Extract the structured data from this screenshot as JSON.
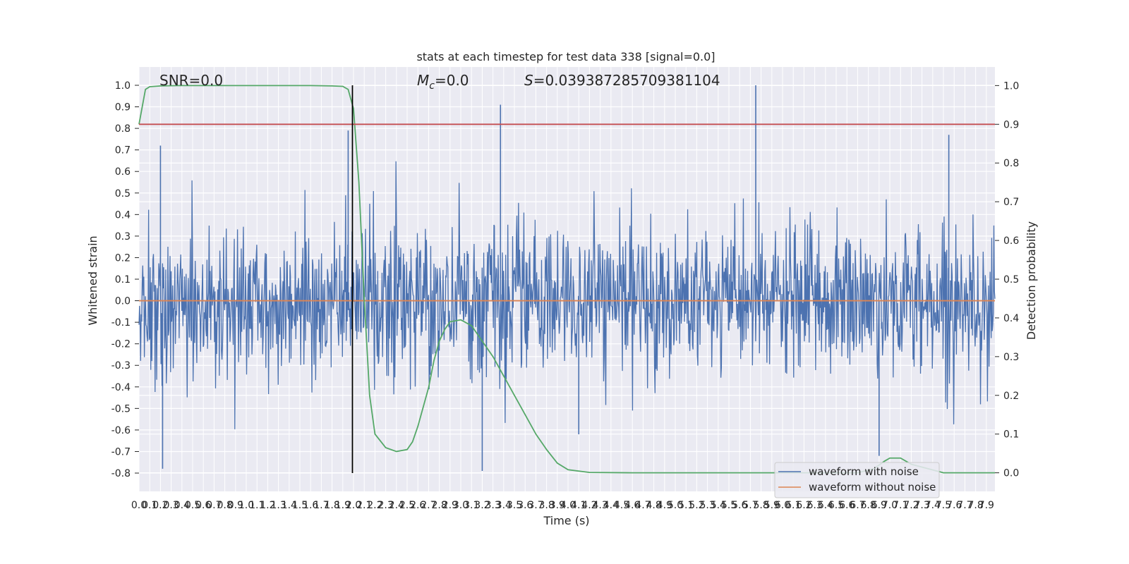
{
  "chart_data": {
    "type": "line",
    "title": "stats at each timestep for test data 338 [signal=0.0]",
    "xlabel": "Time (s)",
    "ylabel_left": "Whitened strain",
    "ylabel_right": "Detection probability",
    "xlim": [
      0.0,
      7.98
    ],
    "ylim_left": [
      -0.885,
      1.085
    ],
    "ylim_right": [
      -0.048,
      1.048
    ],
    "x_ticks": [
      "0.0",
      "0.1",
      "0.2",
      "0.3",
      "0.4",
      "0.5",
      "0.6",
      "0.7",
      "0.8",
      "0.9",
      "1.0",
      "1.1",
      "1.2",
      "1.3",
      "1.4",
      "1.5",
      "1.6",
      "1.7",
      "1.8",
      "1.9",
      "2.0",
      "2.1",
      "2.2",
      "2.3",
      "2.4",
      "2.5",
      "2.6",
      "2.7",
      "2.8",
      "2.9",
      "3.0",
      "3.1",
      "3.2",
      "3.3",
      "3.4",
      "3.5",
      "3.6",
      "3.7",
      "3.8",
      "3.9",
      "4.0",
      "4.1",
      "4.2",
      "4.3",
      "4.4",
      "4.5",
      "4.6",
      "4.7",
      "4.8",
      "4.9",
      "5.0",
      "5.1",
      "5.2",
      "5.3",
      "5.4",
      "5.5",
      "5.6",
      "5.7",
      "5.8",
      "5.9",
      "6.0",
      "6.1",
      "6.2",
      "6.3",
      "6.4",
      "6.5",
      "6.6",
      "6.7",
      "6.8",
      "6.9",
      "7.0",
      "7.1",
      "7.2",
      "7.3",
      "7.4",
      "7.5",
      "7.6",
      "7.7",
      "7.8",
      "7.9"
    ],
    "y_ticks_left": [
      "-0.8",
      "-0.7",
      "-0.6",
      "-0.5",
      "-0.4",
      "-0.3",
      "-0.2",
      "-0.1",
      "0.0",
      "0.1",
      "0.2",
      "0.3",
      "0.4",
      "0.5",
      "0.6",
      "0.7",
      "0.8",
      "0.9",
      "1.0"
    ],
    "y_ticks_right": [
      "0.0",
      "0.1",
      "0.2",
      "0.3",
      "0.4",
      "0.5",
      "0.6",
      "0.7",
      "0.8",
      "0.9",
      "1.0"
    ],
    "annotations": {
      "snr": "SNR=0.0",
      "mc_symbol": "M",
      "mc_subscript": "c",
      "mc_value": "=0.0",
      "s_symbol": "S",
      "s_value": "=0.039387285709381104"
    },
    "legend": {
      "placement": "lower-right",
      "entries": [
        "waveform with noise",
        "waveform without noise"
      ]
    },
    "series": [
      {
        "name": "waveform with noise",
        "color": "#4c72b0",
        "axis": "left",
        "description_values": {
          "noise_std": 0.17,
          "peaks": [
            [
              0.2,
              0.72
            ],
            [
              1.95,
              0.79
            ],
            [
              3.37,
              0.91
            ],
            [
              5.75,
              1.0
            ],
            [
              7.55,
              0.77
            ],
            [
              0.22,
              -0.78
            ],
            [
              3.2,
              -0.79
            ],
            [
              6.9,
              -0.72
            ],
            [
              4.1,
              -0.62
            ]
          ]
        }
      },
      {
        "name": "waveform without noise",
        "color": "#dd8452",
        "axis": "left",
        "x": [
          0.0,
          7.98
        ],
        "y": [
          0.0,
          0.0
        ]
      },
      {
        "color": "#55a868",
        "axis": "right",
        "x": [
          0.0,
          0.06,
          0.1,
          0.2,
          0.4,
          0.8,
          1.2,
          1.6,
          1.8,
          1.9,
          1.95,
          2.0,
          2.05,
          2.1,
          2.15,
          2.2,
          2.3,
          2.4,
          2.5,
          2.55,
          2.6,
          2.7,
          2.75,
          2.8,
          2.85,
          2.9,
          3.0,
          3.1,
          3.2,
          3.3,
          3.4,
          3.5,
          3.6,
          3.7,
          3.8,
          3.9,
          4.0,
          4.2,
          4.6,
          5.0,
          6.0,
          6.7,
          6.85,
          6.95,
          7.0,
          7.1,
          7.2,
          7.5,
          7.98
        ],
        "y": [
          0.9,
          0.99,
          0.997,
          0.999,
          1.0,
          1.0,
          1.0,
          1.0,
          0.999,
          0.998,
          0.99,
          0.94,
          0.75,
          0.45,
          0.2,
          0.1,
          0.065,
          0.055,
          0.06,
          0.08,
          0.12,
          0.22,
          0.29,
          0.34,
          0.37,
          0.39,
          0.395,
          0.38,
          0.34,
          0.3,
          0.25,
          0.2,
          0.15,
          0.1,
          0.06,
          0.025,
          0.008,
          0.001,
          0.0,
          0.0,
          0.0,
          0.0,
          0.01,
          0.03,
          0.038,
          0.038,
          0.022,
          0.0,
          0.0
        ]
      },
      {
        "color": "#c44e52",
        "axis": "right",
        "x": [
          0.0,
          7.98
        ],
        "y": [
          0.9,
          0.9
        ]
      },
      {
        "color": "#000000",
        "axis": "left",
        "x": [
          1.99,
          1.99
        ],
        "y": [
          -0.8,
          1.0
        ]
      }
    ],
    "grid": true
  }
}
